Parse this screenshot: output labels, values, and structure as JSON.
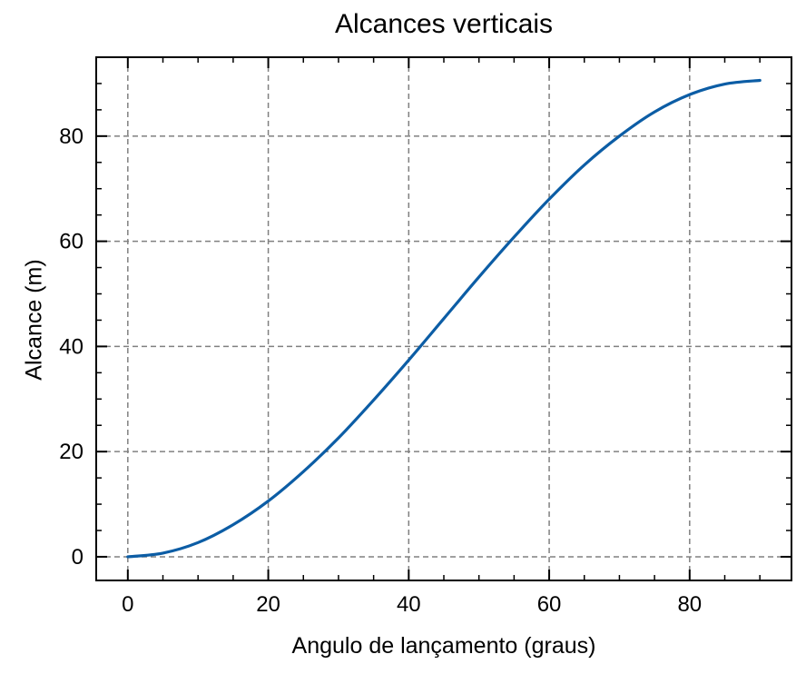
{
  "chart_data": {
    "type": "line",
    "title": "Alcances verticais",
    "xlabel": "Angulo de lançamento (graus)",
    "ylabel": "Alcance (m)",
    "xlim": [
      -4.5,
      94.5
    ],
    "ylim": [
      -4.5,
      95.0
    ],
    "xticks": [
      0,
      20,
      40,
      60,
      80
    ],
    "yticks": [
      0,
      20,
      40,
      60,
      80
    ],
    "grid": true,
    "series": [
      {
        "color": "#0c5da5",
        "x": [
          0,
          5,
          10,
          15,
          20,
          25,
          30,
          35,
          40,
          45,
          50,
          55,
          60,
          65,
          70,
          75,
          80,
          85,
          90
        ],
        "y": [
          0,
          0.7,
          2.7,
          6.1,
          10.6,
          16.2,
          22.6,
          29.8,
          37.4,
          45.3,
          53.2,
          60.8,
          68.0,
          74.5,
          80.0,
          84.6,
          87.9,
          89.9,
          90.6
        ]
      }
    ]
  }
}
